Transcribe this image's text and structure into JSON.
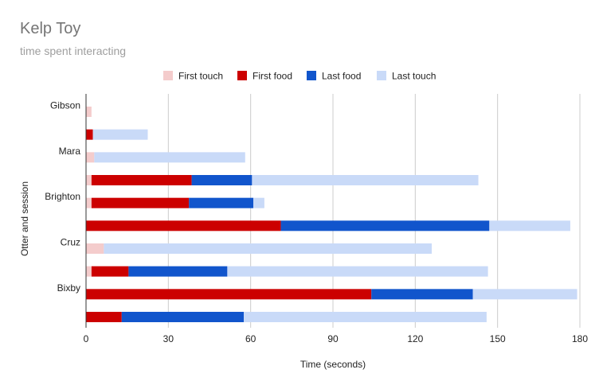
{
  "chart_data": {
    "type": "bar",
    "stacked": true,
    "orientation": "horizontal",
    "title": "Kelp Toy",
    "subtitle": "time spent interacting",
    "xlabel": "Time (seconds)",
    "ylabel": "Otter and session",
    "xlim": [
      0,
      180
    ],
    "xticks": [
      0,
      30,
      60,
      90,
      120,
      150,
      180
    ],
    "grid": true,
    "legend_position": "top",
    "categories": [
      "Gibson",
      "Mara",
      "Brighton",
      "Cruz",
      "Bixby"
    ],
    "series": [
      {
        "name": "First touch",
        "color": "#f4cccc"
      },
      {
        "name": "First food",
        "color": "#cc0000"
      },
      {
        "name": "Last food",
        "color": "#1155cc"
      },
      {
        "name": "Last touch",
        "color": "#c9daf8"
      }
    ],
    "rows": [
      {
        "category": "Gibson",
        "values": [
          2,
          0,
          0,
          0
        ]
      },
      {
        "category": "",
        "values": [
          0,
          2.5,
          0,
          20
        ]
      },
      {
        "category": "Mara",
        "values": [
          3,
          0,
          0,
          55
        ]
      },
      {
        "category": "",
        "values": [
          2,
          36.5,
          22,
          82.5
        ]
      },
      {
        "category": "Brighton",
        "values": [
          2,
          35.5,
          23.5,
          4
        ]
      },
      {
        "category": "",
        "values": [
          0,
          71,
          76,
          29.5
        ]
      },
      {
        "category": "Cruz",
        "values": [
          6.5,
          0,
          0,
          119.5
        ]
      },
      {
        "category": "",
        "values": [
          2,
          13.5,
          36,
          95
        ]
      },
      {
        "category": "Bixby",
        "values": [
          0,
          104,
          37,
          38
        ]
      },
      {
        "category": "",
        "values": [
          0,
          13,
          44.5,
          88.5
        ]
      }
    ]
  }
}
